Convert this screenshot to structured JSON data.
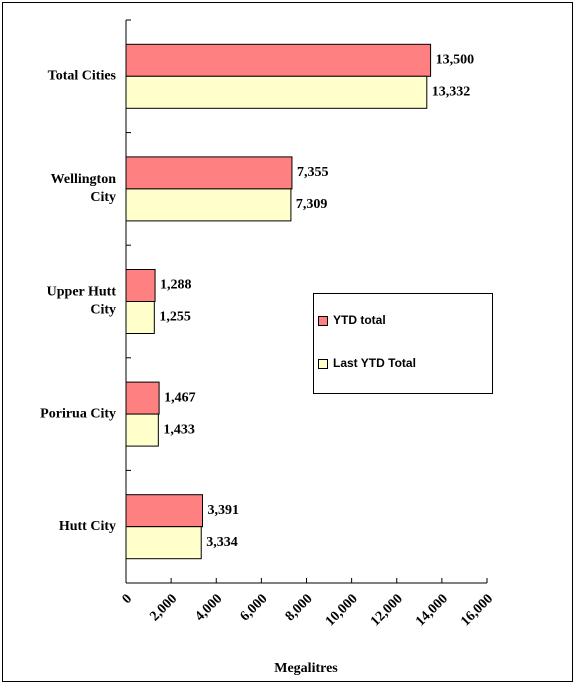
{
  "chart_data": {
    "type": "bar",
    "orientation": "horizontal",
    "x_label": "Megalitres",
    "categories": [
      "Total Cities",
      "Wellington City",
      "Upper Hutt City",
      "Porirua City",
      "Hutt City"
    ],
    "series": [
      {
        "name": "YTD total",
        "color": "#ff8080",
        "values": [
          13500,
          7355,
          1288,
          1467,
          3391
        ],
        "value_labels": [
          "13,500",
          "7,355",
          "1,288",
          "1,467",
          "3,391"
        ]
      },
      {
        "name": "Last YTD Total",
        "color": "#ffffcc",
        "values": [
          13332,
          7309,
          1255,
          1433,
          3334
        ],
        "value_labels": [
          "13,332",
          "7,309",
          "1,255",
          "1,433",
          "3,334"
        ]
      }
    ],
    "xlim": [
      0,
      16000
    ],
    "xticks": [
      0,
      {
        "value": 2000,
        "label": "2,000"
      },
      {
        "value": 4000,
        "label": "4,000"
      },
      {
        "value": 6000,
        "label": "6,000"
      },
      {
        "value": 8000,
        "label": "8,000"
      },
      {
        "value": 10000,
        "label": "10,000"
      },
      {
        "value": 12000,
        "label": "12,000"
      },
      {
        "value": 14000,
        "label": "14,000"
      },
      {
        "value": 16000,
        "label": "16,000"
      }
    ],
    "legend": "right"
  }
}
